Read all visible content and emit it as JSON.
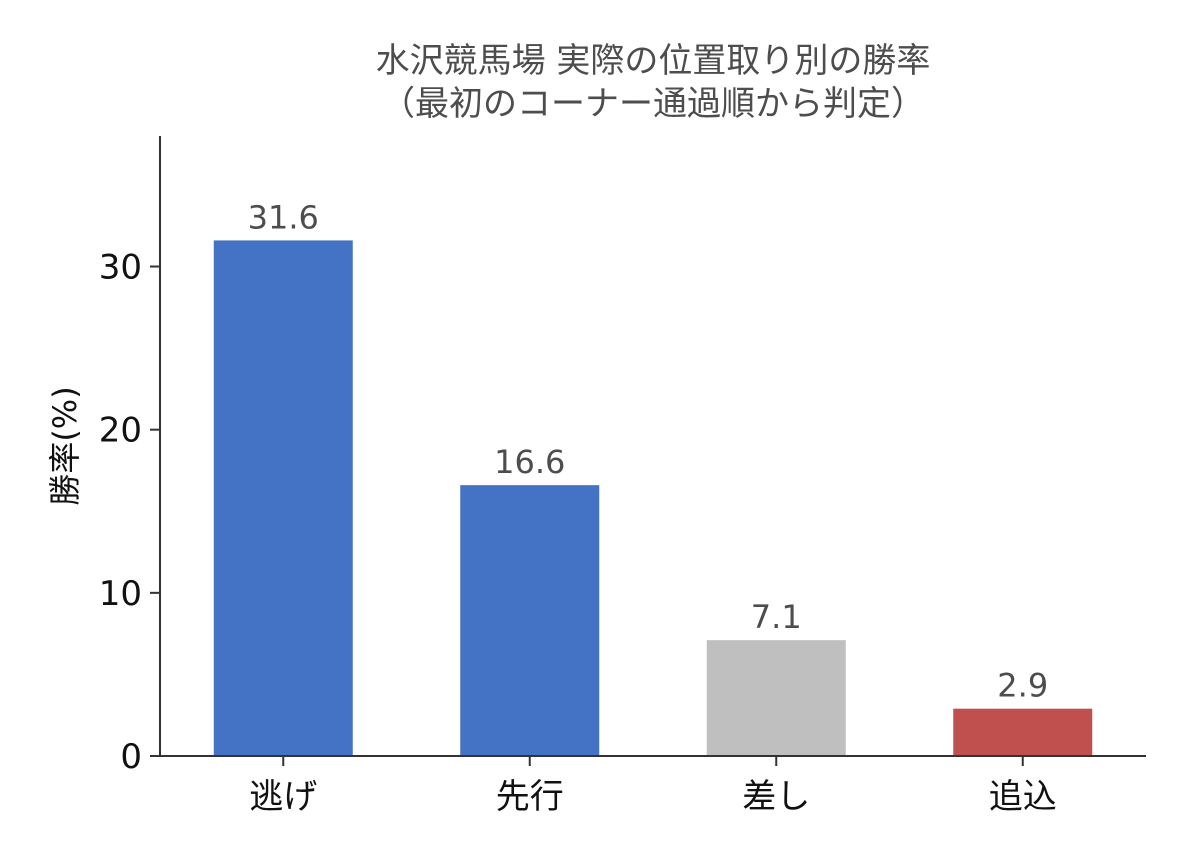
{
  "chart_data": {
    "type": "bar",
    "title": "水沢競馬場 実際の位置取り別の勝率",
    "subtitle": "（最初のコーナー通過順から判定）",
    "xlabel": "",
    "ylabel": "勝率(%)",
    "categories": [
      "逃げ",
      "先行",
      "差し",
      "追込"
    ],
    "values": [
      31.6,
      16.6,
      7.1,
      2.9
    ],
    "value_labels": [
      "31.6",
      "16.6",
      "7.1",
      "2.9"
    ],
    "colors": [
      "#4472c4",
      "#4472c4",
      "#bfbfbf",
      "#c0504d"
    ],
    "ylim": [
      0,
      38
    ],
    "yticks": [
      0,
      10,
      20,
      30
    ],
    "ytick_labels": [
      "0",
      "10",
      "20",
      "30"
    ],
    "grid": false,
    "legend": "none"
  }
}
